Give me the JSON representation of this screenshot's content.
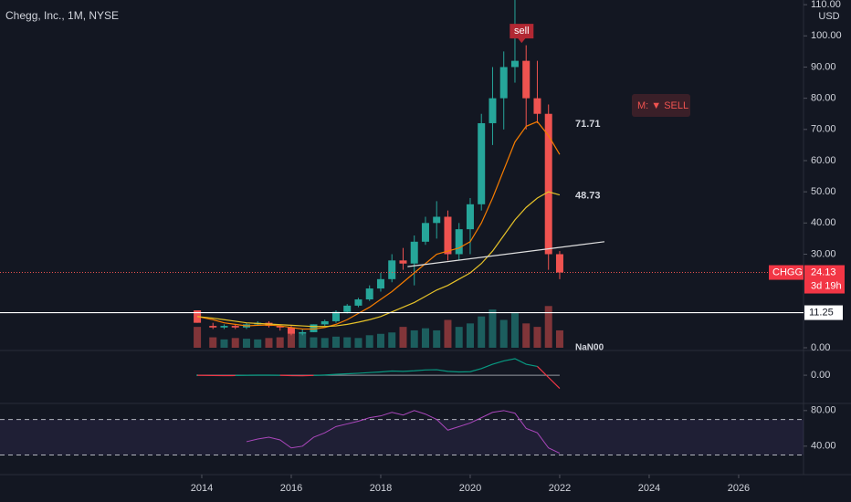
{
  "chart_data": [
    {
      "type": "candlestick",
      "title": "Chegg, Inc., 1M, NYSE",
      "currency": "USD",
      "xlim": [
        2009.49,
        2027.45
      ],
      "ylim": [
        0,
        111.5
      ],
      "yticks": [
        {
          "value": 0,
          "label": "0.00"
        },
        {
          "value": 30,
          "label": "30.00"
        },
        {
          "value": 40,
          "label": "40.00"
        },
        {
          "value": 50,
          "label": "50.00"
        },
        {
          "value": 60,
          "label": "60.00"
        },
        {
          "value": 70,
          "label": "70.00"
        },
        {
          "value": 80,
          "label": "80.00"
        },
        {
          "value": 90,
          "label": "90.00"
        },
        {
          "value": 100,
          "label": "100.00"
        },
        {
          "value": 110,
          "label": "110.00"
        }
      ],
      "x": [
        2013.9,
        2014.25,
        2014.5,
        2014.75,
        2015.0,
        2015.25,
        2015.5,
        2015.75,
        2016.0,
        2016.25,
        2016.5,
        2016.75,
        2017.0,
        2017.25,
        2017.5,
        2017.75,
        2018.0,
        2018.25,
        2018.5,
        2018.75,
        2019.0,
        2019.25,
        2019.5,
        2019.75,
        2020.0,
        2020.25,
        2020.5,
        2020.75,
        2021.0,
        2021.25,
        2021.5,
        2021.75,
        2022.0
      ],
      "open": [
        12,
        7,
        6.5,
        7,
        6.5,
        7.5,
        8,
        7,
        6.5,
        4.5,
        5,
        7.5,
        8.5,
        11.5,
        13.5,
        15.5,
        19,
        22,
        28,
        27,
        34,
        40,
        42,
        30,
        38,
        46,
        72,
        80,
        90,
        92,
        80,
        75,
        30
      ],
      "high": [
        12,
        8,
        7.5,
        7.5,
        8,
        8.5,
        8.5,
        7,
        7,
        6,
        7.5,
        9,
        12,
        14,
        16,
        20,
        24,
        30,
        32,
        36,
        42,
        47,
        44,
        40,
        48,
        75,
        90,
        95,
        115,
        97,
        92,
        78,
        31
      ],
      "low": [
        8,
        6,
        6,
        6,
        6,
        7,
        6.5,
        5.5,
        4,
        4,
        5,
        7,
        8,
        11,
        13,
        15,
        18,
        21,
        25,
        20,
        33,
        35,
        28,
        28,
        30,
        44,
        65,
        70,
        85,
        70,
        72,
        25,
        22
      ],
      "close": [
        8,
        6.5,
        7,
        6.5,
        7.5,
        8,
        7,
        6.5,
        4.5,
        5,
        7.5,
        8.5,
        11.5,
        13.5,
        15.5,
        19,
        22,
        28,
        27,
        34,
        40,
        42,
        30,
        38,
        46,
        72,
        80,
        90,
        92,
        80,
        75,
        30,
        24.13
      ],
      "up_color": "#26a69a",
      "down_color": "#ef5350",
      "volume": [
        30,
        15,
        12,
        14,
        13,
        12,
        14,
        15,
        25,
        20,
        15,
        14,
        16,
        15,
        14,
        18,
        20,
        22,
        30,
        25,
        28,
        25,
        40,
        30,
        35,
        45,
        55,
        40,
        50,
        35,
        30,
        60,
        25
      ],
      "volume_ylim": [
        0,
        500
      ],
      "volume_label": "NaN00",
      "series": [
        {
          "color": "#f57c00",
          "values": [
            10,
            9,
            8,
            7.5,
            7,
            7.2,
            7.3,
            7,
            6.5,
            6,
            6,
            6.5,
            7.5,
            9,
            11,
            13,
            15.5,
            18,
            21,
            24,
            27,
            30,
            31,
            32,
            34,
            40,
            48,
            57,
            66,
            71,
            72.5,
            68,
            62
          ]
        },
        {
          "color": "#e6c229",
          "values": [
            10,
            9.5,
            9,
            8.5,
            8,
            7.8,
            7.6,
            7.4,
            7.2,
            7,
            6.8,
            6.8,
            7,
            7.5,
            8.2,
            9,
            10,
            11.5,
            13,
            14.5,
            16.5,
            18.5,
            20,
            22,
            24,
            27,
            31,
            36,
            41,
            45,
            48,
            50,
            49
          ]
        }
      ],
      "price_labels": [
        71.71,
        48.73
      ],
      "level": 11.25,
      "trendline": {
        "x": [
          2018.6,
          2023.0
        ],
        "y": [
          26,
          34
        ]
      },
      "last_price": {
        "symbol": "CHGG",
        "value": 24.13,
        "countdown": "3d 19h"
      },
      "sell": {
        "x": 2021.15,
        "y": 98,
        "label": "sell"
      },
      "signal": "M: ▼ SELL"
    },
    {
      "type": "line",
      "xlim": [
        2009.49,
        2027.45
      ],
      "ylim": [
        -24,
        20
      ],
      "yticks": [
        {
          "value": 0,
          "label": "0.00"
        }
      ],
      "x": [
        2013.9,
        2014.25,
        2014.5,
        2014.75,
        2015.0,
        2015.25,
        2015.5,
        2015.75,
        2016.0,
        2016.25,
        2016.5,
        2016.75,
        2017.0,
        2017.25,
        2017.5,
        2017.75,
        2018.0,
        2018.25,
        2018.5,
        2018.75,
        2019.0,
        2019.25,
        2019.5,
        2019.75,
        2020.0,
        2020.25,
        2020.5,
        2020.75,
        2021.0,
        2021.25,
        2021.5,
        2021.75,
        2022.0
      ],
      "values": [
        0,
        -0.3,
        -0.4,
        -0.3,
        0,
        0.1,
        0.1,
        0,
        -0.4,
        -0.5,
        -0.2,
        0.2,
        0.8,
        1.3,
        1.8,
        2.4,
        3,
        3.8,
        3.5,
        4,
        4.8,
        5,
        3.5,
        3,
        3.2,
        6,
        10,
        13,
        15,
        10,
        8,
        -2,
        -12
      ],
      "up_color": "#089981",
      "down_color": "#f23645"
    },
    {
      "type": "line",
      "xlim": [
        2009.49,
        2027.45
      ],
      "ylim": [
        8,
        87
      ],
      "yticks": [
        {
          "value": 80,
          "label": "80.00"
        },
        {
          "value": 40,
          "label": "40.00"
        }
      ],
      "xticks": [
        2014,
        2016,
        2018,
        2020,
        2022,
        2024,
        2026
      ],
      "bands": [
        70,
        30
      ],
      "color": "#ab47bc",
      "x": [
        2013.9,
        2014.25,
        2014.5,
        2014.75,
        2015.0,
        2015.25,
        2015.5,
        2015.75,
        2016.0,
        2016.25,
        2016.5,
        2016.75,
        2017.0,
        2017.25,
        2017.5,
        2017.75,
        2018.0,
        2018.25,
        2018.5,
        2018.75,
        2019.0,
        2019.25,
        2019.5,
        2019.75,
        2020.0,
        2020.25,
        2020.5,
        2020.75,
        2021.0,
        2021.25,
        2021.5,
        2021.75,
        2022.0
      ],
      "values": [
        null,
        null,
        null,
        null,
        45,
        48,
        50,
        47,
        38,
        40,
        50,
        55,
        62,
        65,
        68,
        72,
        74,
        78,
        75,
        80,
        76,
        70,
        58,
        62,
        66,
        72,
        78,
        80,
        77,
        60,
        55,
        38,
        32
      ]
    }
  ]
}
